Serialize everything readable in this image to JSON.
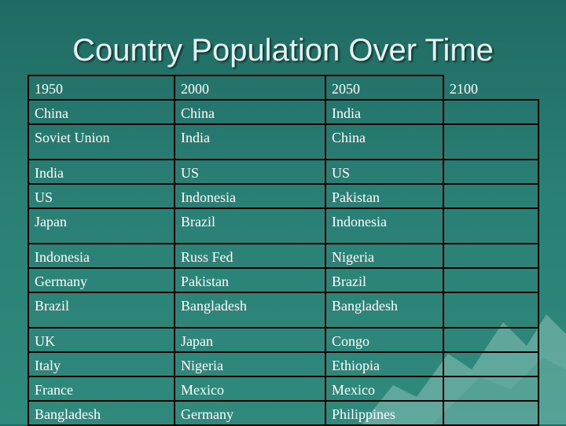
{
  "title": "Country Population Over Time",
  "table": {
    "headers": [
      "1950",
      "2000",
      "2050",
      "2100"
    ],
    "rows": [
      [
        "China",
        "China",
        "India",
        ""
      ],
      [
        "Soviet Union",
        "India",
        "China",
        ""
      ],
      [
        "India",
        "US",
        "US",
        ""
      ],
      [
        "US",
        "Indonesia",
        "Pakistan",
        ""
      ],
      [
        "Japan",
        "Brazil",
        "Indonesia",
        ""
      ],
      [
        "Indonesia",
        "Russ Fed",
        "Nigeria",
        ""
      ],
      [
        "Germany",
        "Pakistan",
        "Brazil",
        ""
      ],
      [
        "Brazil",
        "Bangladesh",
        "Bangladesh",
        ""
      ],
      [
        "UK",
        "Japan",
        "Congo",
        ""
      ],
      [
        "Italy",
        "Nigeria",
        "Ethiopia",
        ""
      ],
      [
        "France",
        "Mexico",
        "Mexico",
        ""
      ],
      [
        "Bangladesh",
        "Germany",
        "Philippines",
        ""
      ]
    ]
  }
}
